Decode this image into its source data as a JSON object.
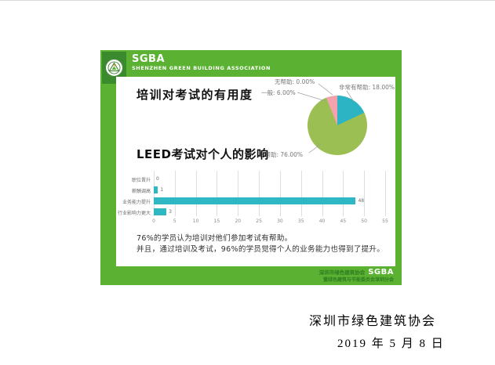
{
  "colors": {
    "slide_green": "#5bb232",
    "logo_square_green": "#3b8a2e",
    "pie_green": "#9cbf53",
    "pie_teal": "#2cb4c4",
    "pie_pink": "#f3a2ae",
    "bar_teal": "#2fb7c4",
    "footer_text_green": "#2e7c20"
  },
  "header": {
    "title": "SGBA",
    "subtitle": "SHENZHEN GREEN BUILDING ASSOCIATION"
  },
  "section1_title": "培训对考试的有用度",
  "section2_title": "LEED考试对个人的影响",
  "chart_data": [
    {
      "type": "pie",
      "title": "培训对考试的有用度",
      "slices": [
        {
          "label": "非常有帮助",
          "pct": 18,
          "color": "#2cb4c4"
        },
        {
          "label": "有帮助",
          "pct": 76,
          "color": "#9cbf53"
        },
        {
          "label": "一般",
          "pct": 6,
          "color": "#f3a2ae"
        },
        {
          "label": "无帮助",
          "pct": 0,
          "color": "#c9a0dc"
        }
      ],
      "callouts": {
        "none": "无帮助: 0.00%",
        "average": "一般: 6.00%",
        "very": "非常有帮助: 18.00%",
        "helpful": "有帮助: 76.00%"
      },
      "legend_position": "callout-labels"
    },
    {
      "type": "bar",
      "orientation": "horizontal",
      "title": "LEED考试对个人的影响",
      "categories": [
        "职位晋升",
        "薪酬调高",
        "业务能力提升",
        "行业影响力更大"
      ],
      "values": [
        0,
        1,
        48,
        3
      ],
      "xlim": [
        0,
        55
      ],
      "xticks": [
        0,
        5,
        10,
        15,
        20,
        25,
        30,
        35,
        40,
        45,
        50,
        55
      ],
      "bar_color": "#2fb7c4",
      "grid": true
    }
  ],
  "summary": {
    "line1": "76%的学员认为培训对他们参加考试有帮助。",
    "line2": "并且，通过培训及考试，96%的学员觉得个人的业务能力也得到了提升。"
  },
  "footer": {
    "line1_cn": "深圳市绿色建筑协会",
    "line1_en": "SGBA",
    "line2_cn": "暨绿色建筑与节能委员会深圳分会"
  },
  "caption": {
    "org": "深圳市绿色建筑协会",
    "date": "2019 年 5 月 8 日"
  }
}
